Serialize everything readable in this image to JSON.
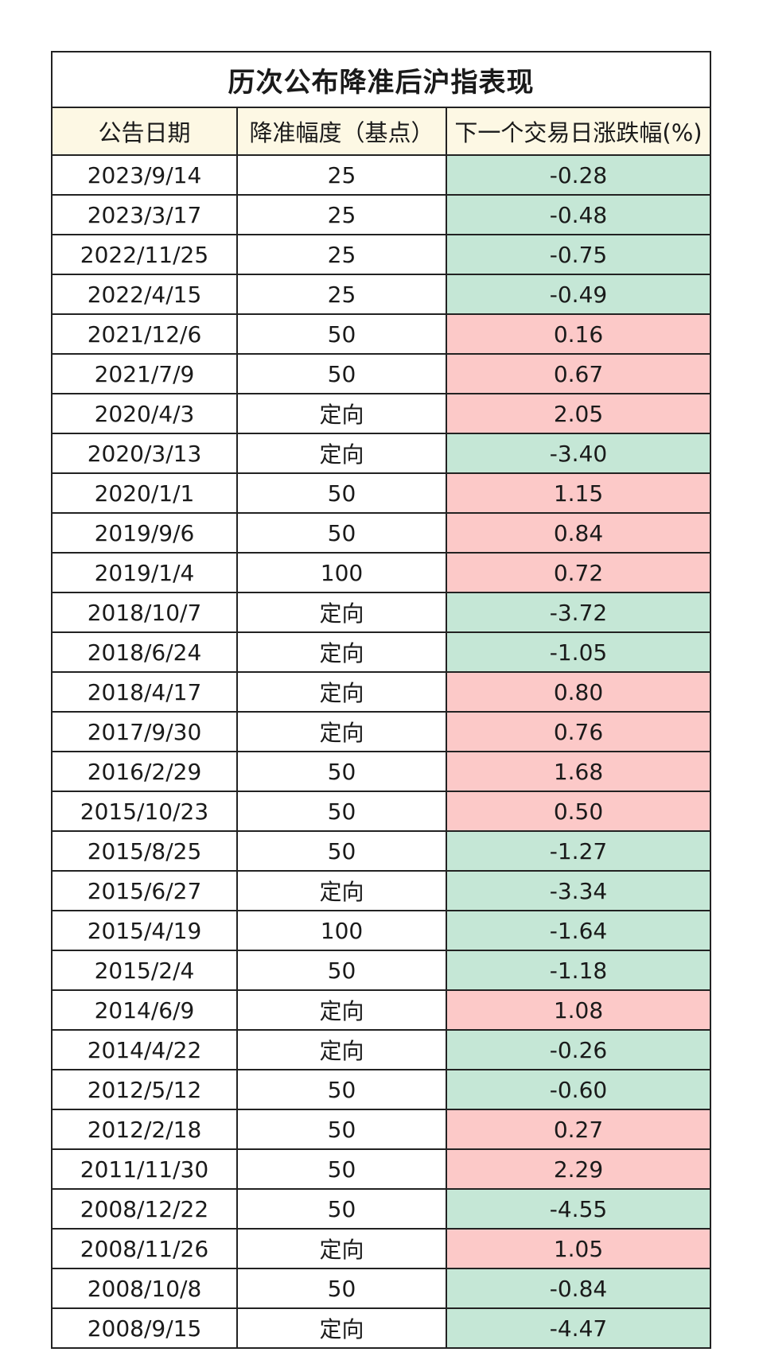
{
  "title": "历次公布降准后沪指表现",
  "headers": [
    "公告日期",
    "降准幅度（基点）",
    "下一个交易日涨跌幅(%)"
  ],
  "colors": {
    "up": "#fcc9c8",
    "down": "#c5e7d6",
    "header_bg": "#fdf8e4"
  },
  "rows": [
    {
      "date": "2023/9/14",
      "cut": "25",
      "change": "-0.28"
    },
    {
      "date": "2023/3/17",
      "cut": "25",
      "change": "-0.48"
    },
    {
      "date": "2022/11/25",
      "cut": "25",
      "change": "-0.75"
    },
    {
      "date": "2022/4/15",
      "cut": "25",
      "change": "-0.49"
    },
    {
      "date": "2021/12/6",
      "cut": "50",
      "change": "0.16"
    },
    {
      "date": "2021/7/9",
      "cut": "50",
      "change": "0.67"
    },
    {
      "date": "2020/4/3",
      "cut": "定向",
      "change": "2.05"
    },
    {
      "date": "2020/3/13",
      "cut": "定向",
      "change": "-3.40"
    },
    {
      "date": "2020/1/1",
      "cut": "50",
      "change": "1.15"
    },
    {
      "date": "2019/9/6",
      "cut": "50",
      "change": "0.84"
    },
    {
      "date": "2019/1/4",
      "cut": "100",
      "change": "0.72"
    },
    {
      "date": "2018/10/7",
      "cut": "定向",
      "change": "-3.72"
    },
    {
      "date": "2018/6/24",
      "cut": "定向",
      "change": "-1.05"
    },
    {
      "date": "2018/4/17",
      "cut": "定向",
      "change": "0.80"
    },
    {
      "date": "2017/9/30",
      "cut": "定向",
      "change": "0.76"
    },
    {
      "date": "2016/2/29",
      "cut": "50",
      "change": "1.68"
    },
    {
      "date": "2015/10/23",
      "cut": "50",
      "change": "0.50"
    },
    {
      "date": "2015/8/25",
      "cut": "50",
      "change": "-1.27"
    },
    {
      "date": "2015/6/27",
      "cut": "定向",
      "change": "-3.34"
    },
    {
      "date": "2015/4/19",
      "cut": "100",
      "change": "-1.64"
    },
    {
      "date": "2015/2/4",
      "cut": "50",
      "change": "-1.18"
    },
    {
      "date": "2014/6/9",
      "cut": "定向",
      "change": "1.08"
    },
    {
      "date": "2014/4/22",
      "cut": "定向",
      "change": "-0.26"
    },
    {
      "date": "2012/5/12",
      "cut": "50",
      "change": "-0.60"
    },
    {
      "date": "2012/2/18",
      "cut": "50",
      "change": "0.27"
    },
    {
      "date": "2011/11/30",
      "cut": "50",
      "change": "2.29"
    },
    {
      "date": "2008/12/22",
      "cut": "50",
      "change": "-4.55"
    },
    {
      "date": "2008/11/26",
      "cut": "定向",
      "change": "1.05"
    },
    {
      "date": "2008/10/8",
      "cut": "50",
      "change": "-0.84"
    },
    {
      "date": "2008/9/15",
      "cut": "定向",
      "change": "-4.47"
    }
  ]
}
